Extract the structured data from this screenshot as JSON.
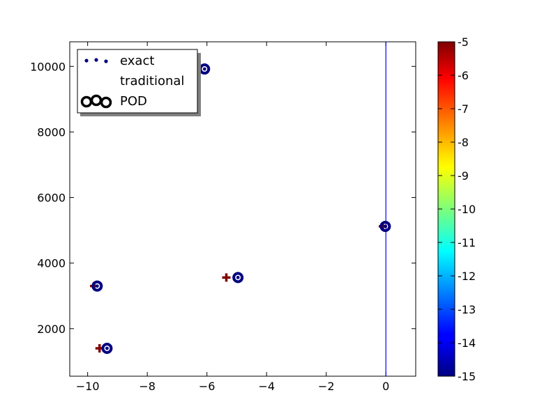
{
  "chart_data": {
    "type": "scatter",
    "title": "",
    "xlabel": "",
    "ylabel": "",
    "xlim": [
      -10.6,
      1.0
    ],
    "ylim": [
      550,
      10750
    ],
    "x_ticks": [
      -10,
      -8,
      -6,
      -4,
      -2,
      0
    ],
    "x_tick_labels": [
      "−10",
      "−8",
      "−6",
      "−4",
      "−2",
      "0"
    ],
    "y_ticks": [
      2000,
      4000,
      6000,
      8000,
      10000
    ],
    "y_tick_labels": [
      "2000",
      "4000",
      "6000",
      "8000",
      "10000"
    ],
    "grid": false,
    "vertical_line": {
      "x": 0.0,
      "color": "#0000ff"
    },
    "legend": {
      "placement": "upper-left",
      "entries": [
        {
          "label": "exact",
          "marker": "small-dot"
        },
        {
          "label": "traditional",
          "marker": "plus"
        },
        {
          "label": "POD",
          "marker": "ring"
        }
      ]
    },
    "series": [
      {
        "name": "exact",
        "color": "#000080",
        "points": [
          {
            "x": -9.35,
            "y": 1400
          },
          {
            "x": -9.68,
            "y": 3300
          },
          {
            "x": -4.96,
            "y": 3560
          },
          {
            "x": -0.02,
            "y": 5120
          },
          {
            "x": -6.08,
            "y": 9920
          }
        ]
      },
      {
        "name": "traditional",
        "color": "#800000",
        "points": [
          {
            "x": -9.6,
            "y": 1400
          },
          {
            "x": -9.78,
            "y": 3300
          },
          {
            "x": -5.35,
            "y": 3560
          },
          {
            "x": -0.1,
            "y": 5120
          }
        ]
      },
      {
        "name": "POD",
        "color": "#000080",
        "points": [
          {
            "x": -9.35,
            "y": 1400
          },
          {
            "x": -9.68,
            "y": 3300
          },
          {
            "x": -4.96,
            "y": 3560
          },
          {
            "x": -0.02,
            "y": 5120
          },
          {
            "x": -6.08,
            "y": 9920
          }
        ]
      }
    ],
    "colorbar": {
      "min": -15,
      "max": -5,
      "ticks": [
        -5,
        -6,
        -7,
        -8,
        -9,
        -10,
        -11,
        -12,
        -13,
        -14,
        -15
      ],
      "tick_labels": [
        "-5",
        "-6",
        "-7",
        "-8",
        "-9",
        "-10",
        "-11",
        "-12",
        "-13",
        "-14",
        "-15"
      ],
      "colormap": "jet"
    }
  }
}
